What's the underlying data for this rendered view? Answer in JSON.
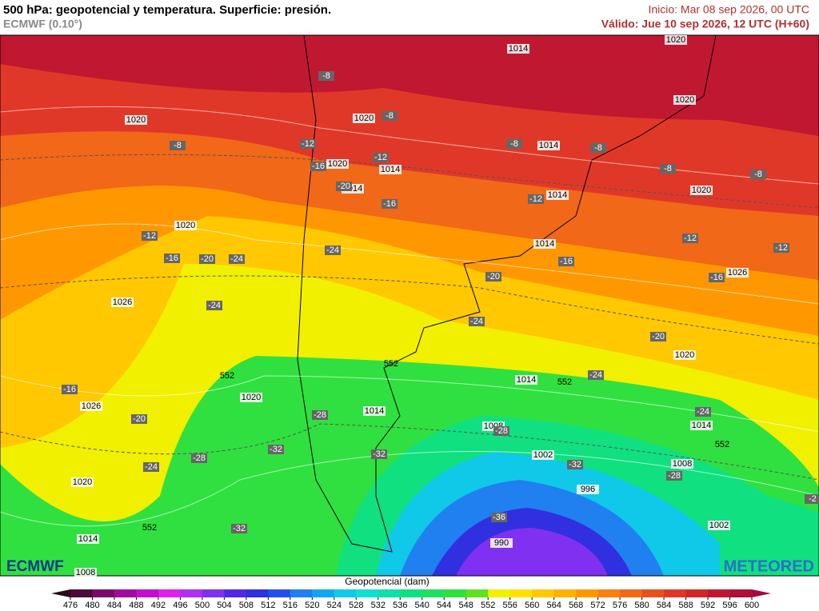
{
  "header": {
    "title": "500 hPa: geopotencial y temperatura. Superficie: presión.",
    "model": "ECMWF (0.10°)",
    "init": "Inicio: Mar 08 sep 2026, 00 UTC",
    "valid": "Válido: Jue 10 sep 2026, 12 UTC (H+60)"
  },
  "logos": {
    "left": "ECMWF",
    "right": "METEORED"
  },
  "colorbar": {
    "label": "Geopotencial (dam)",
    "ticks": [
      476,
      480,
      484,
      488,
      492,
      496,
      500,
      504,
      508,
      512,
      516,
      520,
      524,
      528,
      532,
      536,
      540,
      544,
      548,
      552,
      556,
      560,
      564,
      568,
      572,
      576,
      580,
      584,
      588,
      592,
      596,
      600
    ],
    "colors": [
      "#2a0a1a",
      "#4a0a3a",
      "#7a0a6a",
      "#a00aa0",
      "#c010c8",
      "#e020e8",
      "#b030f0",
      "#8030f0",
      "#5028e8",
      "#3030e0",
      "#2050e8",
      "#2080f0",
      "#10a8f0",
      "#10c8e8",
      "#10e0d0",
      "#10e0a8",
      "#10e080",
      "#20e060",
      "#30e040",
      "#60e020",
      "#f0f000",
      "#ffe000",
      "#ffc800",
      "#ffb000",
      "#ff9800",
      "#f88010",
      "#f06818",
      "#e85020",
      "#e03828",
      "#d02828",
      "#c01830",
      "#b01038",
      "#a00c40"
    ]
  },
  "map": {
    "pressure_labels": [
      "1020",
      "1014",
      "1020",
      "1020",
      "1020",
      "1014",
      "1020",
      "1014",
      "1014",
      "1014",
      "1020",
      "1020",
      "1014",
      "1026",
      "1026",
      "1020",
      "1014",
      "1020",
      "1026",
      "1014",
      "1014",
      "1008",
      "1002",
      "1008",
      "996",
      "1020",
      "1002",
      "1014",
      "990",
      "1008"
    ],
    "temperature_labels": [
      "-8",
      "-8",
      "-8",
      "-12",
      "-16",
      "-12",
      "-8",
      "-8",
      "-8",
      "-8",
      "-12",
      "-16",
      "-20",
      "-12",
      "-16",
      "-20",
      "-24",
      "-24",
      "-12",
      "-12",
      "-16",
      "-20",
      "-16",
      "-24",
      "-24",
      "-20",
      "-24",
      "-16",
      "-24",
      "-20",
      "-28",
      "-28",
      "-24",
      "-28",
      "-32",
      "-32",
      "-32",
      "-28",
      "-36",
      "-32",
      "-2"
    ],
    "geopotential_labels": [
      "552",
      "552",
      "552",
      "552",
      "552"
    ]
  }
}
